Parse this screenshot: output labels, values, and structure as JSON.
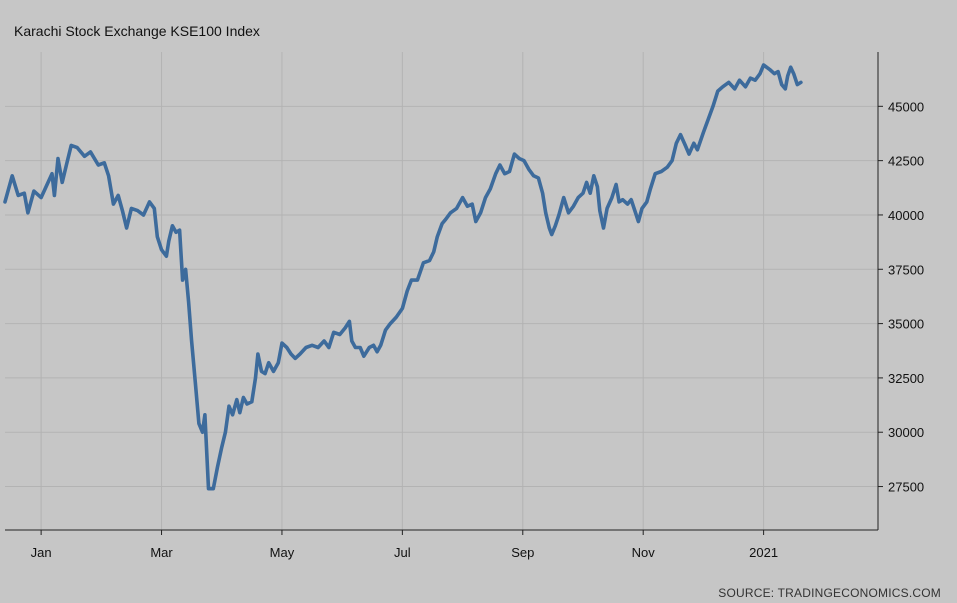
{
  "chart_data": {
    "type": "line",
    "title": "Karachi Stock Exchange KSE100 Index",
    "source": "SOURCE: TRADINGECONOMICS.COM",
    "xlabel": "",
    "ylabel": "",
    "ylim": [
      25500,
      47500
    ],
    "y_ticks": [
      27500,
      30000,
      32500,
      35000,
      37500,
      40000,
      42500,
      45000
    ],
    "x_ticks": [
      {
        "label": "Jan",
        "x": 1.0
      },
      {
        "label": "Mar",
        "x": 3.0
      },
      {
        "label": "May",
        "x": 5.0
      },
      {
        "label": "Jul",
        "x": 7.0
      },
      {
        "label": "Sep",
        "x": 9.0
      },
      {
        "label": "Nov",
        "x": 11.0
      },
      {
        "label": "2021",
        "x": 13.0
      }
    ],
    "xlim": [
      0.4,
      14.9
    ],
    "grid": true,
    "line_color": "#3d6b9c",
    "background_color": "#c6c6c6",
    "series": [
      {
        "name": "",
        "points": [
          [
            0.4,
            40600
          ],
          [
            0.52,
            41800
          ],
          [
            0.62,
            40900
          ],
          [
            0.72,
            41000
          ],
          [
            0.78,
            40100
          ],
          [
            0.88,
            41100
          ],
          [
            1.0,
            40800
          ],
          [
            1.1,
            41400
          ],
          [
            1.18,
            41900
          ],
          [
            1.22,
            40900
          ],
          [
            1.28,
            42600
          ],
          [
            1.35,
            41500
          ],
          [
            1.42,
            42300
          ],
          [
            1.5,
            43200
          ],
          [
            1.6,
            43100
          ],
          [
            1.72,
            42700
          ],
          [
            1.82,
            42900
          ],
          [
            1.95,
            42300
          ],
          [
            2.05,
            42400
          ],
          [
            2.12,
            41800
          ],
          [
            2.2,
            40500
          ],
          [
            2.28,
            40900
          ],
          [
            2.35,
            40200
          ],
          [
            2.42,
            39400
          ],
          [
            2.5,
            40300
          ],
          [
            2.6,
            40200
          ],
          [
            2.7,
            40000
          ],
          [
            2.8,
            40600
          ],
          [
            2.88,
            40300
          ],
          [
            2.93,
            39000
          ],
          [
            3.0,
            38400
          ],
          [
            3.08,
            38100
          ],
          [
            3.12,
            38800
          ],
          [
            3.18,
            39500
          ],
          [
            3.24,
            39200
          ],
          [
            3.3,
            39300
          ],
          [
            3.35,
            37000
          ],
          [
            3.4,
            37500
          ],
          [
            3.45,
            36000
          ],
          [
            3.5,
            34200
          ],
          [
            3.56,
            32300
          ],
          [
            3.62,
            30400
          ],
          [
            3.68,
            30000
          ],
          [
            3.72,
            30800
          ],
          [
            3.78,
            27400
          ],
          [
            3.86,
            27400
          ],
          [
            3.93,
            28400
          ],
          [
            4.0,
            29300
          ],
          [
            4.06,
            30000
          ],
          [
            4.12,
            31200
          ],
          [
            4.18,
            30800
          ],
          [
            4.25,
            31500
          ],
          [
            4.3,
            30900
          ],
          [
            4.36,
            31600
          ],
          [
            4.42,
            31300
          ],
          [
            4.5,
            31400
          ],
          [
            4.56,
            32500
          ],
          [
            4.6,
            33600
          ],
          [
            4.66,
            32800
          ],
          [
            4.72,
            32700
          ],
          [
            4.78,
            33200
          ],
          [
            4.86,
            32800
          ],
          [
            4.94,
            33200
          ],
          [
            5.0,
            34100
          ],
          [
            5.08,
            33900
          ],
          [
            5.15,
            33600
          ],
          [
            5.22,
            33400
          ],
          [
            5.3,
            33600
          ],
          [
            5.4,
            33900
          ],
          [
            5.5,
            34000
          ],
          [
            5.6,
            33900
          ],
          [
            5.7,
            34200
          ],
          [
            5.78,
            33900
          ],
          [
            5.86,
            34600
          ],
          [
            5.96,
            34500
          ],
          [
            6.05,
            34800
          ],
          [
            6.12,
            35100
          ],
          [
            6.16,
            34200
          ],
          [
            6.22,
            33900
          ],
          [
            6.3,
            33900
          ],
          [
            6.36,
            33500
          ],
          [
            6.45,
            33900
          ],
          [
            6.52,
            34000
          ],
          [
            6.58,
            33700
          ],
          [
            6.64,
            34000
          ],
          [
            6.72,
            34700
          ],
          [
            6.8,
            35000
          ],
          [
            6.9,
            35300
          ],
          [
            7.0,
            35700
          ],
          [
            7.08,
            36500
          ],
          [
            7.15,
            37000
          ],
          [
            7.25,
            37000
          ],
          [
            7.35,
            37800
          ],
          [
            7.45,
            37900
          ],
          [
            7.52,
            38300
          ],
          [
            7.58,
            39000
          ],
          [
            7.66,
            39600
          ],
          [
            7.72,
            39800
          ],
          [
            7.8,
            40100
          ],
          [
            7.9,
            40300
          ],
          [
            8.0,
            40800
          ],
          [
            8.08,
            40400
          ],
          [
            8.16,
            40500
          ],
          [
            8.22,
            39700
          ],
          [
            8.3,
            40100
          ],
          [
            8.38,
            40800
          ],
          [
            8.46,
            41200
          ],
          [
            8.55,
            41900
          ],
          [
            8.62,
            42300
          ],
          [
            8.7,
            41900
          ],
          [
            8.78,
            42000
          ],
          [
            8.86,
            42800
          ],
          [
            8.94,
            42600
          ],
          [
            9.02,
            42500
          ],
          [
            9.1,
            42100
          ],
          [
            9.18,
            41800
          ],
          [
            9.26,
            41700
          ],
          [
            9.33,
            41000
          ],
          [
            9.38,
            40100
          ],
          [
            9.44,
            39400
          ],
          [
            9.48,
            39100
          ],
          [
            9.54,
            39500
          ],
          [
            9.6,
            40000
          ],
          [
            9.68,
            40800
          ],
          [
            9.76,
            40100
          ],
          [
            9.84,
            40400
          ],
          [
            9.92,
            40800
          ],
          [
            10.0,
            41000
          ],
          [
            10.06,
            41500
          ],
          [
            10.12,
            41000
          ],
          [
            10.18,
            41800
          ],
          [
            10.24,
            41300
          ],
          [
            10.28,
            40200
          ],
          [
            10.34,
            39400
          ],
          [
            10.4,
            40300
          ],
          [
            10.48,
            40800
          ],
          [
            10.55,
            41400
          ],
          [
            10.6,
            40600
          ],
          [
            10.66,
            40700
          ],
          [
            10.74,
            40500
          ],
          [
            10.8,
            40700
          ],
          [
            10.86,
            40200
          ],
          [
            10.92,
            39700
          ],
          [
            10.98,
            40300
          ],
          [
            11.06,
            40600
          ],
          [
            11.12,
            41200
          ],
          [
            11.2,
            41900
          ],
          [
            11.3,
            42000
          ],
          [
            11.4,
            42200
          ],
          [
            11.48,
            42500
          ],
          [
            11.55,
            43300
          ],
          [
            11.62,
            43700
          ],
          [
            11.7,
            43200
          ],
          [
            11.76,
            42800
          ],
          [
            11.84,
            43300
          ],
          [
            11.9,
            43000
          ],
          [
            12.0,
            43800
          ],
          [
            12.08,
            44400
          ],
          [
            12.16,
            45000
          ],
          [
            12.24,
            45700
          ],
          [
            12.32,
            45900
          ],
          [
            12.42,
            46100
          ],
          [
            12.52,
            45800
          ],
          [
            12.6,
            46200
          ],
          [
            12.7,
            45900
          ],
          [
            12.78,
            46300
          ],
          [
            12.86,
            46200
          ],
          [
            12.94,
            46500
          ],
          [
            13.0,
            46900
          ],
          [
            13.1,
            46700
          ],
          [
            13.18,
            46500
          ],
          [
            13.24,
            46600
          ],
          [
            13.3,
            46000
          ],
          [
            13.36,
            45800
          ],
          [
            13.4,
            46400
          ],
          [
            13.45,
            46800
          ],
          [
            13.5,
            46500
          ],
          [
            13.56,
            46000
          ],
          [
            13.62,
            46100
          ]
        ]
      }
    ]
  }
}
